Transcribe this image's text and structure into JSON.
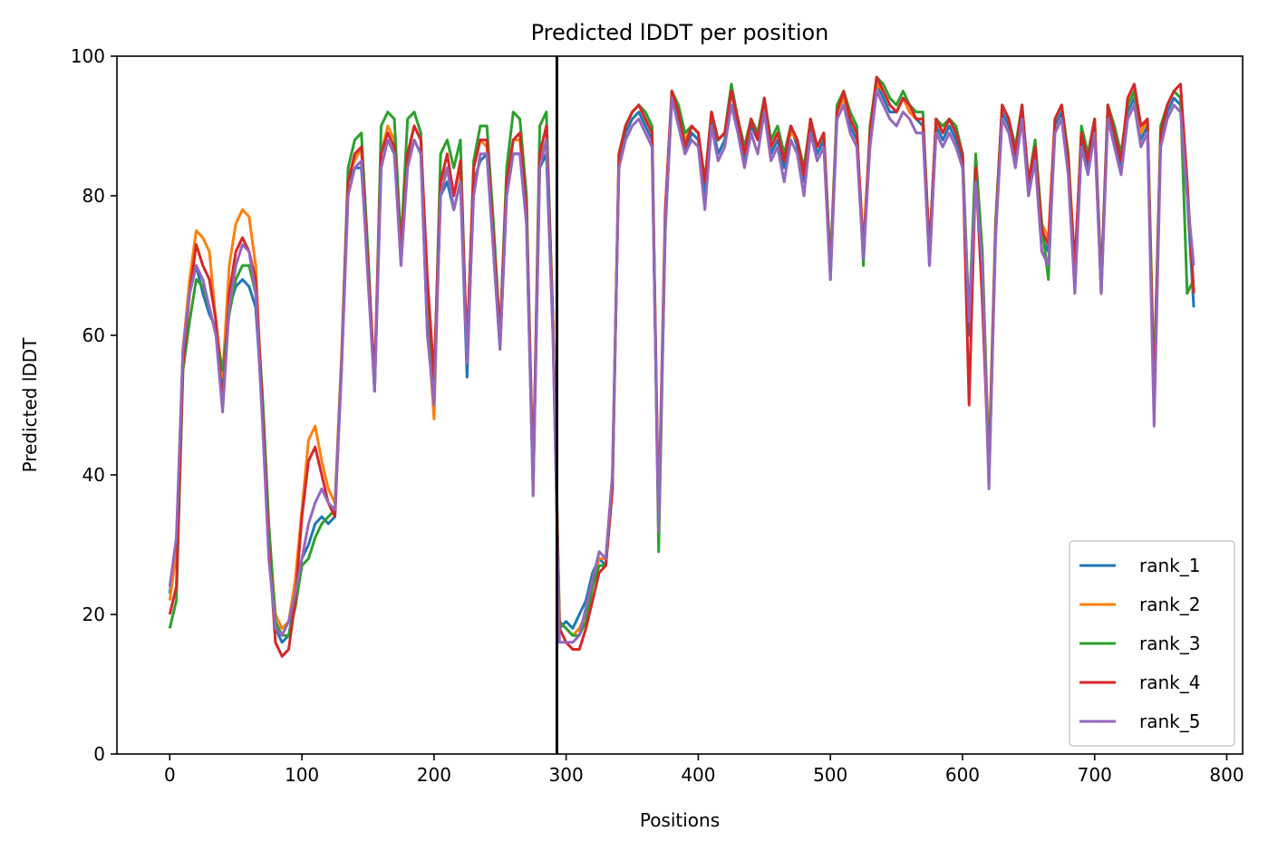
{
  "chart_data": {
    "type": "line",
    "title": "Predicted lDDT per position",
    "xlabel": "Positions",
    "ylabel": "Predicted lDDT",
    "xlim": [
      -40,
      812
    ],
    "ylim": [
      0,
      100
    ],
    "xticks": [
      0,
      100,
      200,
      300,
      400,
      500,
      600,
      700,
      800
    ],
    "yticks": [
      0,
      20,
      40,
      60,
      80,
      100
    ],
    "grid": false,
    "legend_position": "bottom-right",
    "vline_x": 293,
    "vline_color": "#000000",
    "x": [
      0,
      5,
      10,
      15,
      20,
      25,
      30,
      35,
      40,
      45,
      50,
      55,
      60,
      65,
      70,
      75,
      80,
      85,
      90,
      95,
      100,
      105,
      110,
      115,
      120,
      125,
      130,
      135,
      140,
      145,
      150,
      155,
      160,
      165,
      170,
      175,
      180,
      185,
      190,
      195,
      200,
      205,
      210,
      215,
      220,
      225,
      230,
      235,
      240,
      245,
      250,
      255,
      260,
      265,
      270,
      275,
      280,
      285,
      290,
      295,
      300,
      305,
      310,
      315,
      320,
      325,
      330,
      335,
      340,
      345,
      350,
      355,
      360,
      365,
      370,
      375,
      380,
      385,
      390,
      395,
      400,
      405,
      410,
      415,
      420,
      425,
      430,
      435,
      440,
      445,
      450,
      455,
      460,
      465,
      470,
      475,
      480,
      485,
      490,
      495,
      500,
      505,
      510,
      515,
      520,
      525,
      530,
      535,
      540,
      545,
      550,
      555,
      560,
      565,
      570,
      575,
      580,
      585,
      590,
      595,
      600,
      605,
      610,
      615,
      620,
      625,
      630,
      635,
      640,
      645,
      650,
      655,
      660,
      665,
      670,
      675,
      680,
      685,
      690,
      695,
      700,
      705,
      710,
      715,
      720,
      725,
      730,
      735,
      740,
      745,
      750,
      755,
      760,
      765,
      770,
      775
    ],
    "series": [
      {
        "name": "rank_1",
        "color": "#1f77b4",
        "values": [
          23,
          30,
          58,
          66,
          70,
          66,
          63,
          61,
          52,
          64,
          67,
          68,
          67,
          64,
          50,
          30,
          18,
          16,
          17,
          22,
          28,
          30,
          33,
          34,
          33,
          34,
          55,
          82,
          84,
          84,
          70,
          52,
          84,
          88,
          86,
          72,
          85,
          88,
          86,
          60,
          52,
          80,
          82,
          78,
          82,
          54,
          82,
          85,
          86,
          72,
          58,
          80,
          86,
          86,
          76,
          38,
          84,
          86,
          60,
          18,
          19,
          18,
          20,
          22,
          26,
          28,
          27,
          40,
          85,
          89,
          91,
          92,
          90,
          88,
          31,
          75,
          94,
          91,
          86,
          89,
          88,
          80,
          91,
          86,
          88,
          95,
          90,
          85,
          90,
          88,
          94,
          86,
          88,
          84,
          90,
          87,
          82,
          90,
          86,
          88,
          68,
          92,
          94,
          90,
          88,
          71,
          88,
          96,
          94,
          92,
          92,
          94,
          92,
          91,
          90,
          70,
          90,
          88,
          90,
          88,
          85,
          60,
          84,
          70,
          39,
          74,
          92,
          90,
          85,
          92,
          80,
          86,
          74,
          72,
          90,
          92,
          84,
          68,
          88,
          84,
          90,
          66,
          92,
          88,
          84,
          92,
          94,
          88,
          90,
          52,
          88,
          92,
          94,
          93,
          80,
          64
        ]
      },
      {
        "name": "rank_2",
        "color": "#ff7f0e",
        "values": [
          22,
          29,
          58,
          68,
          75,
          74,
          72,
          62,
          54,
          70,
          76,
          78,
          77,
          70,
          50,
          32,
          20,
          18,
          19,
          25,
          35,
          45,
          47,
          42,
          38,
          36,
          57,
          83,
          85,
          87,
          71,
          52,
          86,
          90,
          88,
          70,
          86,
          90,
          88,
          62,
          48,
          82,
          84,
          80,
          84,
          58,
          84,
          88,
          87,
          74,
          60,
          82,
          88,
          88,
          78,
          38,
          85,
          88,
          62,
          19,
          18,
          17,
          18,
          20,
          25,
          28,
          28,
          40,
          86,
          90,
          92,
          93,
          91,
          89,
          34,
          78,
          95,
          92,
          88,
          90,
          89,
          82,
          92,
          88,
          89,
          95,
          91,
          87,
          91,
          89,
          93,
          87,
          89,
          86,
          89,
          88,
          83,
          91,
          87,
          89,
          70,
          92,
          94,
          91,
          89,
          73,
          89,
          96,
          95,
          93,
          92,
          94,
          92,
          91,
          91,
          72,
          91,
          89,
          91,
          89,
          86,
          62,
          85,
          72,
          42,
          76,
          93,
          91,
          86,
          93,
          82,
          87,
          76,
          74,
          91,
          93,
          86,
          70,
          89,
          86,
          91,
          66,
          93,
          89,
          86,
          93,
          95,
          89,
          91,
          54,
          89,
          93,
          95,
          94,
          82,
          66
        ]
      },
      {
        "name": "rank_3",
        "color": "#2ca02c",
        "values": [
          18,
          22,
          55,
          62,
          68,
          67,
          64,
          60,
          55,
          63,
          68,
          70,
          70,
          66,
          52,
          33,
          19,
          17,
          17,
          21,
          27,
          28,
          31,
          33,
          34,
          35,
          56,
          84,
          88,
          89,
          72,
          52,
          90,
          92,
          91,
          73,
          91,
          92,
          89,
          62,
          52,
          86,
          88,
          84,
          88,
          56,
          85,
          90,
          90,
          76,
          60,
          84,
          92,
          91,
          80,
          38,
          90,
          92,
          62,
          19,
          18,
          17,
          17,
          19,
          24,
          27,
          27,
          38,
          86,
          90,
          92,
          93,
          92,
          90,
          29,
          76,
          95,
          93,
          89,
          90,
          89,
          82,
          92,
          88,
          89,
          96,
          91,
          87,
          91,
          89,
          94,
          88,
          90,
          86,
          90,
          88,
          84,
          91,
          87,
          89,
          70,
          93,
          95,
          92,
          90,
          70,
          90,
          97,
          96,
          94,
          93,
          95,
          93,
          92,
          92,
          72,
          91,
          90,
          91,
          90,
          86,
          62,
          86,
          72,
          40,
          76,
          93,
          91,
          87,
          93,
          82,
          88,
          76,
          68,
          91,
          93,
          86,
          68,
          90,
          86,
          91,
          68,
          93,
          90,
          86,
          93,
          95,
          90,
          91,
          52,
          90,
          93,
          95,
          94,
          66,
          68
        ]
      },
      {
        "name": "rank_4",
        "color": "#d62728",
        "values": [
          20,
          24,
          56,
          66,
          73,
          70,
          68,
          62,
          50,
          66,
          72,
          74,
          72,
          68,
          50,
          30,
          16,
          14,
          15,
          22,
          34,
          42,
          44,
          40,
          36,
          34,
          56,
          82,
          86,
          87,
          70,
          54,
          86,
          89,
          87,
          72,
          86,
          90,
          88,
          68,
          54,
          82,
          86,
          80,
          85,
          58,
          84,
          88,
          88,
          74,
          60,
          82,
          88,
          89,
          78,
          40,
          86,
          90,
          62,
          18,
          16,
          15,
          15,
          18,
          22,
          26,
          27,
          38,
          86,
          90,
          92,
          93,
          91,
          89,
          33,
          78,
          95,
          92,
          87,
          90,
          89,
          82,
          92,
          88,
          89,
          95,
          91,
          86,
          91,
          88,
          94,
          87,
          89,
          85,
          90,
          88,
          83,
          91,
          87,
          89,
          69,
          92,
          95,
          91,
          89,
          72,
          89,
          97,
          95,
          93,
          92,
          94,
          93,
          91,
          91,
          72,
          91,
          89,
          91,
          89,
          86,
          50,
          84,
          65,
          40,
          75,
          93,
          91,
          86,
          93,
          82,
          87,
          75,
          73,
          91,
          93,
          85,
          70,
          89,
          85,
          91,
          67,
          93,
          89,
          85,
          94,
          96,
          90,
          91,
          50,
          89,
          93,
          95,
          96,
          82,
          66
        ]
      },
      {
        "name": "rank_5",
        "color": "#9467bd",
        "values": [
          24,
          31,
          58,
          66,
          70,
          68,
          64,
          60,
          49,
          64,
          70,
          73,
          72,
          66,
          48,
          28,
          18,
          17,
          19,
          23,
          28,
          33,
          36,
          38,
          36,
          35,
          55,
          80,
          84,
          85,
          68,
          52,
          84,
          88,
          86,
          70,
          84,
          88,
          86,
          60,
          50,
          80,
          84,
          78,
          82,
          56,
          80,
          86,
          86,
          72,
          58,
          80,
          86,
          86,
          76,
          37,
          84,
          88,
          60,
          16,
          16,
          16,
          17,
          21,
          25,
          29,
          28,
          40,
          84,
          88,
          90,
          91,
          89,
          87,
          32,
          76,
          94,
          90,
          86,
          88,
          87,
          78,
          90,
          85,
          87,
          93,
          89,
          84,
          89,
          86,
          92,
          85,
          87,
          82,
          88,
          86,
          80,
          89,
          85,
          87,
          68,
          91,
          93,
          89,
          87,
          71,
          87,
          95,
          93,
          91,
          90,
          92,
          91,
          89,
          89,
          70,
          89,
          87,
          89,
          87,
          84,
          62,
          82,
          70,
          38,
          74,
          91,
          89,
          84,
          91,
          80,
          85,
          72,
          70,
          89,
          91,
          83,
          66,
          87,
          83,
          89,
          66,
          91,
          87,
          83,
          91,
          93,
          87,
          89,
          47,
          87,
          91,
          93,
          92,
          80,
          70
        ]
      }
    ]
  }
}
